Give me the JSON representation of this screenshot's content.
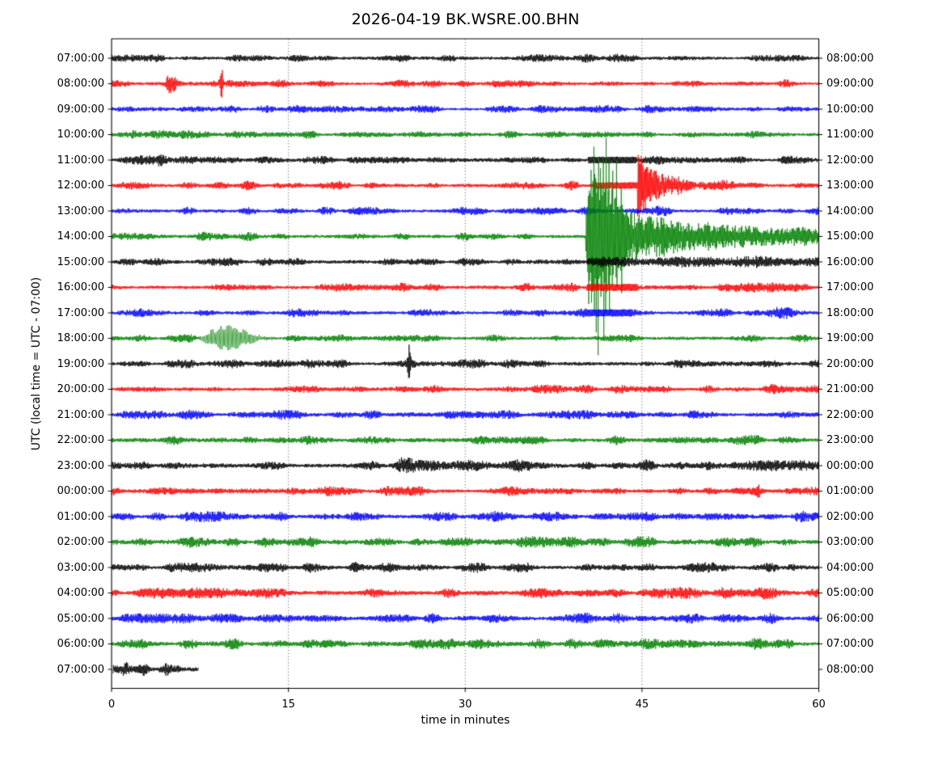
{
  "title": "2026-04-19 BK.WSRE.00.BHN",
  "x_axis": {
    "label": "time in minutes",
    "ticks": [
      "0",
      "15",
      "30",
      "45",
      "60"
    ],
    "tick_values": [
      0,
      15,
      30,
      45,
      60
    ],
    "gridlines_min": [
      15,
      30,
      45
    ],
    "range": [
      0,
      60
    ]
  },
  "y_axis": {
    "label": "UTC (local time = UTC - 07:00)"
  },
  "colors": {
    "background": "#ffffff",
    "frame": "#000000",
    "grid": "#222222",
    "text": "#000000",
    "trace_black": "#000000",
    "trace_red": "#ff0000",
    "trace_blue": "#0000ff",
    "trace_green": "#008000"
  },
  "chart_data": {
    "type": "line",
    "kind": "seismic-helicorder-dayplot",
    "station": "BK.WSRE.00.BHN",
    "date": "2026-04-19",
    "title": "2026-04-19 BK.WSRE.00.BHN",
    "xlabel": "time in minutes",
    "ylabel": "UTC (local time = UTC - 07:00)",
    "xlim": [
      0,
      60
    ],
    "minutes_per_row": 60,
    "grid": "vertical-dotted",
    "rows": [
      {
        "left": "07:00:00",
        "right": "08:00:00",
        "color": "black",
        "amp": 0.95,
        "data_start": 0,
        "data_end": 60
      },
      {
        "left": "08:00:00",
        "right": "09:00:00",
        "color": "red",
        "amp": 0.95,
        "data_start": 0,
        "data_end": 60
      },
      {
        "left": "09:00:00",
        "right": "10:00:00",
        "color": "blue",
        "amp": 0.9,
        "data_start": 0,
        "data_end": 60
      },
      {
        "left": "10:00:00",
        "right": "11:00:00",
        "color": "green",
        "amp": 0.95,
        "data_start": 0,
        "data_end": 60
      },
      {
        "left": "11:00:00",
        "right": "12:00:00",
        "color": "black",
        "amp": 1.0,
        "data_start": 0,
        "data_end": 60
      },
      {
        "left": "12:00:00",
        "right": "13:00:00",
        "color": "red",
        "amp": 1.05,
        "data_start": 0,
        "data_end": 60
      },
      {
        "left": "13:00:00",
        "right": "14:00:00",
        "color": "blue",
        "amp": 1.0,
        "data_start": 0,
        "data_end": 60
      },
      {
        "left": "14:00:00",
        "right": "15:00:00",
        "color": "green",
        "amp": 1.0,
        "data_start": 0,
        "data_end": 60
      },
      {
        "left": "15:00:00",
        "right": "16:00:00",
        "color": "black",
        "amp": 1.0,
        "data_start": 0,
        "data_end": 60
      },
      {
        "left": "16:00:00",
        "right": "17:00:00",
        "color": "red",
        "amp": 1.05,
        "data_start": 0,
        "data_end": 60
      },
      {
        "left": "17:00:00",
        "right": "18:00:00",
        "color": "blue",
        "amp": 1.0,
        "data_start": 0,
        "data_end": 60
      },
      {
        "left": "18:00:00",
        "right": "19:00:00",
        "color": "green",
        "amp": 1.0,
        "data_start": 0,
        "data_end": 60
      },
      {
        "left": "19:00:00",
        "right": "20:00:00",
        "color": "black",
        "amp": 1.0,
        "data_start": 0,
        "data_end": 60
      },
      {
        "left": "20:00:00",
        "right": "21:00:00",
        "color": "red",
        "amp": 1.05,
        "data_start": 0,
        "data_end": 60
      },
      {
        "left": "21:00:00",
        "right": "22:00:00",
        "color": "blue",
        "amp": 1.1,
        "data_start": 0,
        "data_end": 60
      },
      {
        "left": "22:00:00",
        "right": "23:00:00",
        "color": "green",
        "amp": 1.1,
        "data_start": 0,
        "data_end": 60
      },
      {
        "left": "23:00:00",
        "right": "00:00:00",
        "color": "black",
        "amp": 1.3,
        "data_start": 0,
        "data_end": 60
      },
      {
        "left": "00:00:00",
        "right": "01:00:00",
        "color": "red",
        "amp": 1.15,
        "data_start": 0,
        "data_end": 60
      },
      {
        "left": "01:00:00",
        "right": "02:00:00",
        "color": "blue",
        "amp": 1.2,
        "data_start": 0,
        "data_end": 60
      },
      {
        "left": "02:00:00",
        "right": "03:00:00",
        "color": "green",
        "amp": 1.25,
        "data_start": 0,
        "data_end": 60
      },
      {
        "left": "03:00:00",
        "right": "04:00:00",
        "color": "black",
        "amp": 1.15,
        "data_start": 0,
        "data_end": 60
      },
      {
        "left": "04:00:00",
        "right": "05:00:00",
        "color": "red",
        "amp": 1.3,
        "data_start": 0,
        "data_end": 60
      },
      {
        "left": "05:00:00",
        "right": "06:00:00",
        "color": "blue",
        "amp": 1.25,
        "data_start": 0,
        "data_end": 60
      },
      {
        "left": "06:00:00",
        "right": "07:00:00",
        "color": "green",
        "amp": 1.2,
        "data_start": 0,
        "data_end": 60
      },
      {
        "left": "07:00:00",
        "right": "08:00:00",
        "color": "black",
        "amp": 1.1,
        "data_start": 0.12,
        "data_end": 7.4
      }
    ],
    "events": [
      {
        "row": 1,
        "type": "bump",
        "start": 4.3,
        "end": 5.7,
        "amp": 8,
        "desc": "small spindle burst 08:04 UTC"
      },
      {
        "row": 1,
        "type": "spike",
        "t": 9.35,
        "amp": 14,
        "width": 0.1,
        "desc": "narrow spike 08:09 UTC"
      },
      {
        "row": 3,
        "type": "bump",
        "start": 1.4,
        "end": 2.6,
        "amp": 2.5
      },
      {
        "row": 4,
        "type": "bump",
        "start": 3.6,
        "end": 4.8,
        "amp": 3
      },
      {
        "row": 4,
        "type": "flat",
        "start": 40.4,
        "end": 44.55,
        "amp": 4.2,
        "desc": "saturated bar during main quake"
      },
      {
        "row": 4,
        "type": "bump",
        "start": 44.55,
        "end": 47.2,
        "amp": 2
      },
      {
        "row": 5,
        "type": "flat",
        "start": 40.9,
        "end": 44.62,
        "amp": 4.2,
        "desc": "saturated bar during main quake"
      },
      {
        "row": 5,
        "type": "burst",
        "start": 44.62,
        "amp": 36,
        "tau": 2.0,
        "spikes": [
          [
            44.72,
            12
          ],
          [
            44.95,
            9
          ],
          [
            45.3,
            7
          ],
          [
            45.75,
            5
          ]
        ],
        "desc": "large decaying burst on 12:00 row, min 44.6-53"
      },
      {
        "row": 6,
        "type": "bump",
        "start": 45.0,
        "end": 48.0,
        "amp": 2
      },
      {
        "row": 7,
        "type": "quake",
        "start": 40.2,
        "strong_end": 43.9,
        "env": [
          [
            40.2,
            20
          ],
          [
            40.35,
            55
          ],
          [
            40.6,
            62
          ],
          [
            40.9,
            72
          ],
          [
            41.2,
            62
          ],
          [
            41.5,
            66
          ],
          [
            41.9,
            60
          ],
          [
            42.3,
            52
          ],
          [
            42.7,
            46
          ],
          [
            43.1,
            42
          ],
          [
            43.5,
            34
          ],
          [
            43.9,
            28
          ]
        ],
        "spikes": [
          [
            40.5,
            60
          ],
          [
            40.7,
            95
          ],
          [
            40.95,
            120
          ],
          [
            41.1,
            85
          ],
          [
            41.3,
            128
          ],
          [
            41.5,
            70
          ],
          [
            41.75,
            115
          ],
          [
            41.95,
            75
          ],
          [
            42.2,
            80
          ],
          [
            42.5,
            60
          ],
          [
            42.85,
            55
          ],
          [
            43.25,
            45
          ]
        ],
        "coda_amp": 24,
        "coda_tau": 6.0,
        "coda_base": 6.0,
        "clip": 162,
        "desc": "main earthquake at 14:40 UTC, overflows neighbouring rows, coda to end of hour"
      },
      {
        "row": 8,
        "type": "elevated",
        "start": 40.3,
        "end": 60,
        "amp_start": 2.8,
        "amp_end": 1.5
      },
      {
        "row": 9,
        "type": "flat",
        "start": 40.3,
        "end": 44.6,
        "amp": 4.4,
        "desc": "saturated bar during main quake"
      },
      {
        "row": 10,
        "type": "flat",
        "start": 40.3,
        "end": 44.2,
        "amp": 4.6,
        "desc": "saturated bar during main quake"
      },
      {
        "row": 10,
        "type": "bump",
        "start": 55.1,
        "end": 58.7,
        "amp": 5
      },
      {
        "row": 11,
        "type": "osc",
        "start": 7.2,
        "end": 14.5,
        "peak": 9.3,
        "amp": 6.5,
        "period": 0.17,
        "desc": "monochromatic oscillation spindle 18:07-18:14 UTC"
      },
      {
        "row": 11,
        "type": "bump",
        "start": 17.0,
        "end": 19.5,
        "amp": 1.5
      },
      {
        "row": 12,
        "type": "spike",
        "t": 25.25,
        "amp": 19,
        "width": 0.08,
        "desc": "tall narrow spike 19:25 UTC"
      },
      {
        "row": 12,
        "type": "bump",
        "start": 24.6,
        "end": 26.0,
        "amp": 2
      },
      {
        "row": 16,
        "type": "bump",
        "start": 23.4,
        "end": 26.3,
        "amp": 3
      },
      {
        "row": 16,
        "type": "bump",
        "start": 33.0,
        "end": 35.7,
        "amp": 3
      },
      {
        "row": 17,
        "type": "spike",
        "t": 54.85,
        "amp": 8.5,
        "width": 0.1
      },
      {
        "row": 20,
        "type": "bump",
        "start": 19.9,
        "end": 21.3,
        "amp": 2.2
      },
      {
        "row": 20,
        "type": "bump",
        "start": 56.7,
        "end": 58.7,
        "amp": 2.2
      },
      {
        "row": 21,
        "type": "bump",
        "start": 44.2,
        "end": 47.7,
        "amp": 2.2
      },
      {
        "row": 21,
        "type": "bump",
        "start": 54.5,
        "end": 55.9,
        "amp": 2.2
      },
      {
        "row": 22,
        "type": "bump",
        "start": 11.9,
        "end": 16.1,
        "amp": 2.8
      },
      {
        "row": 23,
        "type": "bump",
        "start": 17.3,
        "end": 19.3,
        "amp": 3
      },
      {
        "row": 23,
        "type": "bump",
        "start": 53.7,
        "end": 55.7,
        "amp": 3.5
      },
      {
        "row": 24,
        "type": "bump",
        "start": 0.65,
        "end": 1.75,
        "amp": 4.5,
        "desc": "partial last row bursts"
      },
      {
        "row": 24,
        "type": "bump",
        "start": 2.15,
        "end": 3.35,
        "amp": 4
      },
      {
        "row": 24,
        "type": "bump",
        "start": 3.85,
        "end": 5.15,
        "amp": 4.2
      }
    ]
  }
}
